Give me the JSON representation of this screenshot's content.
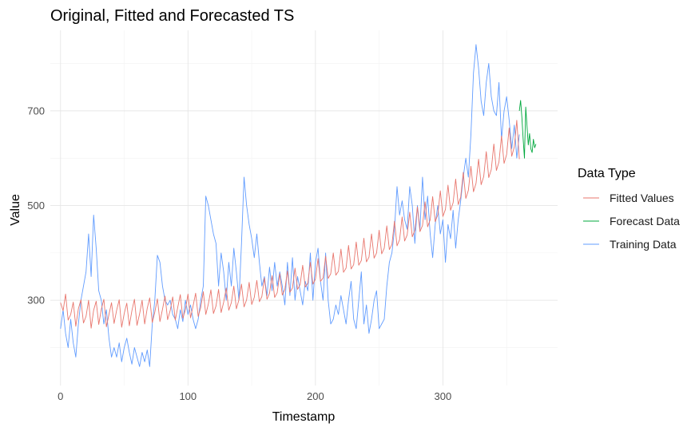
{
  "chart_data": {
    "type": "line",
    "title": "Original, Fitted and Forecasted TS",
    "xlabel": "Timestamp",
    "ylabel": "Value",
    "xlim": [
      -8,
      390
    ],
    "ylim": [
      120,
      870
    ],
    "x_ticks": [
      0,
      100,
      200,
      300
    ],
    "y_ticks": [
      300,
      500,
      700
    ],
    "grid": true,
    "legend_position": "right",
    "legend_title": "Data Type",
    "series": [
      {
        "name": "Fitted Values",
        "color": "#e8766d",
        "x": [
          0,
          2,
          4,
          6,
          8,
          10,
          12,
          14,
          16,
          18,
          20,
          22,
          24,
          26,
          28,
          30,
          32,
          34,
          36,
          38,
          40,
          42,
          44,
          46,
          48,
          50,
          52,
          54,
          56,
          58,
          60,
          62,
          64,
          66,
          68,
          70,
          72,
          74,
          76,
          78,
          80,
          82,
          84,
          86,
          88,
          90,
          92,
          94,
          96,
          98,
          100,
          102,
          104,
          106,
          108,
          110,
          112,
          114,
          116,
          118,
          120,
          122,
          124,
          126,
          128,
          130,
          132,
          134,
          136,
          138,
          140,
          142,
          144,
          146,
          148,
          150,
          152,
          154,
          156,
          158,
          160,
          162,
          164,
          166,
          168,
          170,
          172,
          174,
          176,
          178,
          180,
          182,
          184,
          186,
          188,
          190,
          192,
          194,
          196,
          198,
          200,
          202,
          204,
          206,
          208,
          210,
          212,
          214,
          216,
          218,
          220,
          222,
          224,
          226,
          228,
          230,
          232,
          234,
          236,
          238,
          240,
          242,
          244,
          246,
          248,
          250,
          252,
          254,
          256,
          258,
          260,
          262,
          264,
          266,
          268,
          270,
          272,
          274,
          276,
          278,
          280,
          282,
          284,
          286,
          288,
          290,
          292,
          294,
          296,
          298,
          300,
          302,
          304,
          306,
          308,
          310,
          312,
          314,
          316,
          318,
          320,
          322,
          324,
          326,
          328,
          330,
          332,
          334,
          336,
          338,
          340,
          342,
          344,
          346,
          348,
          350,
          352,
          354,
          356,
          358,
          360
        ],
        "values": [
          295,
          278,
          313,
          258,
          270,
          296,
          245,
          282,
          301,
          252,
          266,
          300,
          241,
          279,
          298,
          249,
          281,
          302,
          244,
          270,
          295,
          251,
          279,
          301,
          243,
          272,
          294,
          246,
          278,
          302,
          247,
          271,
          300,
          250,
          283,
          305,
          253,
          275,
          303,
          255,
          281,
          309,
          259,
          278,
          307,
          258,
          285,
          312,
          262,
          280,
          313,
          263,
          288,
          315,
          266,
          285,
          318,
          270,
          292,
          322,
          272,
          288,
          323,
          274,
          296,
          326,
          279,
          295,
          330,
          282,
          301,
          334,
          286,
          301,
          338,
          291,
          306,
          342,
          297,
          308,
          347,
          302,
          315,
          352,
          306,
          316,
          356,
          311,
          323,
          362,
          317,
          326,
          368,
          323,
          333,
          374,
          328,
          336,
          380,
          334,
          345,
          388,
          340,
          347,
          393,
          346,
          356,
          400,
          353,
          361,
          408,
          359,
          368,
          416,
          366,
          375,
          423,
          374,
          384,
          431,
          381,
          391,
          440,
          389,
          400,
          448,
          398,
          410,
          457,
          407,
          418,
          467,
          415,
          428,
          476,
          425,
          438,
          486,
          434,
          448,
          497,
          445,
          458,
          508,
          455,
          470,
          519,
          466,
          480,
          531,
          477,
          492,
          543,
          490,
          506,
          556,
          502,
          518,
          570,
          515,
          532,
          583,
          529,
          547,
          598,
          544,
          561,
          614,
          559,
          576,
          630,
          574,
          592,
          647,
          589,
          608,
          664,
          604,
          624,
          680,
          598
        ]
      },
      {
        "name": "Forecast Data",
        "color": "#00a83d",
        "x": [
          360,
          361,
          362,
          363,
          364,
          365,
          366,
          367,
          368,
          369,
          370,
          371,
          372,
          373
        ],
        "values": [
          700,
          722,
          686,
          640,
          600,
          708,
          668,
          628,
          652,
          620,
          612,
          640,
          622,
          630
        ]
      },
      {
        "name": "Training Data",
        "color": "#619cff",
        "x": [
          0,
          2,
          4,
          6,
          8,
          10,
          12,
          14,
          16,
          18,
          20,
          22,
          24,
          26,
          28,
          30,
          32,
          34,
          36,
          38,
          40,
          42,
          44,
          46,
          48,
          50,
          52,
          54,
          56,
          58,
          60,
          62,
          64,
          66,
          68,
          70,
          72,
          74,
          76,
          78,
          80,
          82,
          84,
          86,
          88,
          90,
          92,
          94,
          96,
          98,
          100,
          102,
          104,
          106,
          108,
          110,
          112,
          114,
          116,
          118,
          120,
          122,
          124,
          126,
          128,
          130,
          132,
          134,
          136,
          138,
          140,
          142,
          144,
          146,
          148,
          150,
          152,
          154,
          156,
          158,
          160,
          162,
          164,
          166,
          168,
          170,
          172,
          174,
          176,
          178,
          180,
          182,
          184,
          186,
          188,
          190,
          192,
          194,
          196,
          198,
          200,
          202,
          204,
          206,
          208,
          210,
          212,
          214,
          216,
          218,
          220,
          222,
          224,
          226,
          228,
          230,
          232,
          234,
          236,
          238,
          240,
          242,
          244,
          246,
          248,
          250,
          252,
          254,
          256,
          258,
          260,
          262,
          264,
          266,
          268,
          270,
          272,
          274,
          276,
          278,
          280,
          282,
          284,
          286,
          288,
          290,
          292,
          294,
          296,
          298,
          300,
          302,
          304,
          306,
          308,
          310,
          312,
          314,
          316,
          318,
          320,
          322,
          324,
          326,
          328,
          330,
          332,
          334,
          336,
          338,
          340,
          342,
          344,
          346,
          348,
          350,
          352,
          354,
          356,
          358,
          360
        ],
        "values": [
          240,
          280,
          230,
          200,
          260,
          210,
          180,
          250,
          300,
          330,
          360,
          440,
          350,
          480,
          410,
          320,
          300,
          250,
          280,
          220,
          180,
          200,
          180,
          210,
          170,
          200,
          220,
          190,
          165,
          200,
          180,
          160,
          190,
          170,
          195,
          160,
          250,
          300,
          395,
          380,
          330,
          300,
          290,
          300,
          270,
          260,
          240,
          280,
          255,
          300,
          270,
          290,
          260,
          240,
          260,
          300,
          330,
          520,
          500,
          470,
          440,
          420,
          330,
          400,
          360,
          300,
          380,
          330,
          410,
          360,
          300,
          420,
          560,
          500,
          460,
          430,
          390,
          440,
          380,
          330,
          350,
          310,
          370,
          320,
          380,
          330,
          360,
          330,
          290,
          380,
          310,
          390,
          300,
          350,
          320,
          290,
          340,
          320,
          400,
          300,
          380,
          410,
          340,
          300,
          400,
          300,
          250,
          260,
          290,
          270,
          310,
          280,
          250,
          300,
          340,
          260,
          240,
          300,
          360,
          250,
          290,
          230,
          260,
          300,
          320,
          240,
          250,
          260,
          330,
          380,
          400,
          450,
          540,
          480,
          510,
          470,
          450,
          540,
          500,
          420,
          500,
          450,
          560,
          470,
          520,
          440,
          390,
          460,
          500,
          440,
          470,
          380,
          460,
          430,
          490,
          410,
          470,
          510,
          560,
          600,
          560,
          650,
          780,
          840,
          790,
          720,
          690,
          760,
          800,
          730,
          700,
          690,
          760,
          640,
          700,
          730,
          680,
          620,
          670,
          600,
          650
        ]
      }
    ]
  }
}
